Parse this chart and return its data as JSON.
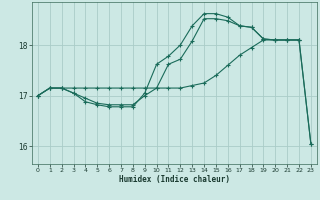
{
  "xlabel": "Humidex (Indice chaleur)",
  "background_color": "#cce8e4",
  "grid_color": "#aaccc8",
  "line_color": "#1a6b5a",
  "xlim": [
    -0.5,
    23.5
  ],
  "ylim": [
    15.65,
    18.85
  ],
  "yticks": [
    16,
    17,
    18
  ],
  "xticks": [
    0,
    1,
    2,
    3,
    4,
    5,
    6,
    7,
    8,
    9,
    10,
    11,
    12,
    13,
    14,
    15,
    16,
    17,
    18,
    19,
    20,
    21,
    22,
    23
  ],
  "line1_x": [
    0,
    1,
    2,
    3,
    4,
    5,
    6,
    7,
    8,
    9,
    10,
    11,
    12,
    13,
    14,
    15,
    16,
    17,
    18,
    19,
    20,
    21,
    22
  ],
  "line1_y": [
    17.0,
    17.15,
    17.15,
    17.15,
    17.15,
    17.15,
    17.15,
    17.15,
    17.15,
    17.15,
    17.15,
    17.15,
    17.15,
    17.2,
    17.25,
    17.4,
    17.6,
    17.8,
    17.95,
    18.1,
    18.1,
    18.1,
    18.1
  ],
  "line2_x": [
    0,
    1,
    2,
    3,
    4,
    5,
    6,
    7,
    8,
    9,
    10,
    11,
    12,
    13,
    14,
    15,
    16,
    17,
    18,
    19,
    20,
    21,
    22,
    23
  ],
  "line2_y": [
    17.0,
    17.15,
    17.15,
    17.05,
    16.95,
    16.85,
    16.82,
    16.82,
    16.82,
    17.0,
    17.15,
    17.62,
    17.72,
    18.08,
    18.52,
    18.52,
    18.48,
    18.38,
    18.35,
    18.12,
    18.1,
    18.1,
    18.1,
    16.05
  ],
  "line3_x": [
    0,
    1,
    2,
    3,
    4,
    5,
    6,
    7,
    8,
    9,
    10,
    11,
    12,
    13,
    14,
    15,
    16,
    17,
    18,
    19,
    20,
    21,
    22,
    23
  ],
  "line3_y": [
    17.0,
    17.15,
    17.15,
    17.05,
    16.88,
    16.82,
    16.78,
    16.78,
    16.78,
    17.05,
    17.62,
    17.78,
    18.0,
    18.38,
    18.62,
    18.62,
    18.55,
    18.38,
    18.35,
    18.12,
    18.1,
    18.1,
    18.1,
    16.05
  ]
}
